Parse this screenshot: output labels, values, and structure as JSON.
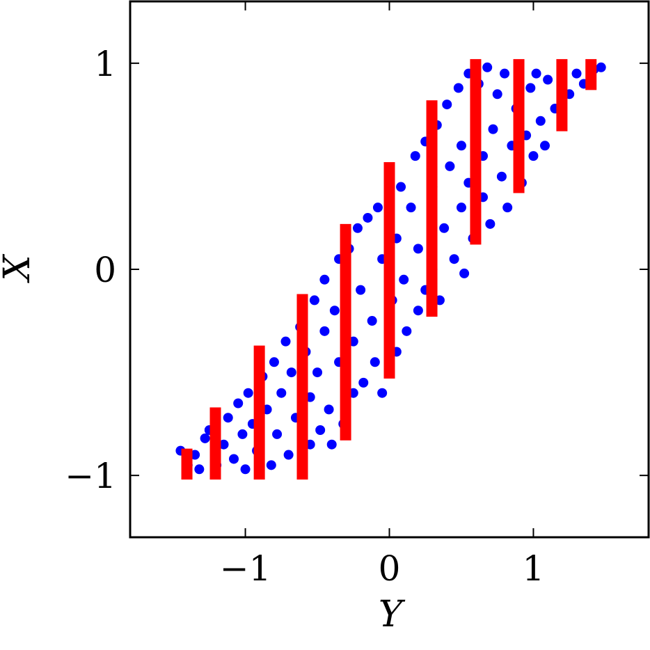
{
  "chart_data": {
    "type": "scatter",
    "x_label": "Y",
    "y_label": "X",
    "xlim": [
      -1.8,
      1.8
    ],
    "ylim": [
      -1.3,
      1.3
    ],
    "xticks": [
      {
        "value": -1,
        "label": "−1"
      },
      0,
      1
    ],
    "yticks": [
      {
        "value": -1,
        "label": "−1"
      },
      0,
      1
    ],
    "points": {
      "color": "#0000ff",
      "x": [
        -1.45,
        -1.4,
        -1.35,
        -1.32,
        -1.28,
        -1.25,
        -1.2,
        -1.15,
        -1.12,
        -1.08,
        -1.05,
        -1.02,
        -1.0,
        -0.98,
        -0.95,
        -0.92,
        -0.88,
        -0.85,
        -0.82,
        -0.8,
        -0.78,
        -0.75,
        -0.72,
        -0.7,
        -0.68,
        -0.65,
        -0.62,
        -0.6,
        -0.58,
        -0.55,
        -0.55,
        -0.52,
        -0.5,
        -0.48,
        -0.45,
        -0.45,
        -0.42,
        -0.4,
        -0.38,
        -0.35,
        -0.35,
        -0.32,
        -0.28,
        -0.25,
        -0.25,
        -0.22,
        -0.2,
        -0.18,
        -0.15,
        -0.12,
        -0.1,
        -0.08,
        -0.05,
        -0.05,
        0.0,
        0.02,
        0.05,
        0.05,
        0.08,
        0.1,
        0.12,
        0.15,
        0.18,
        0.2,
        0.2,
        0.25,
        0.25,
        0.3,
        0.3,
        0.33,
        0.35,
        0.38,
        0.4,
        0.42,
        0.45,
        0.48,
        0.5,
        0.5,
        0.52,
        0.55,
        0.55,
        0.58,
        0.6,
        0.62,
        0.65,
        0.65,
        0.68,
        0.7,
        0.72,
        0.75,
        0.78,
        0.8,
        0.82,
        0.85,
        0.88,
        0.9,
        0.92,
        0.95,
        0.98,
        1.0,
        1.02,
        1.05,
        1.08,
        1.1,
        1.15,
        1.2,
        1.25,
        1.3,
        1.35,
        1.42,
        1.47
      ],
      "y": [
        -0.88,
        -0.95,
        -0.9,
        -0.97,
        -0.82,
        -0.78,
        -0.95,
        -0.85,
        -0.72,
        -0.92,
        -0.65,
        -0.8,
        -0.97,
        -0.6,
        -0.75,
        -0.88,
        -0.52,
        -0.68,
        -0.95,
        -0.45,
        -0.8,
        -0.6,
        -0.35,
        -0.9,
        -0.5,
        -0.72,
        -0.28,
        -0.98,
        -0.4,
        -0.85,
        -0.62,
        -0.15,
        -0.5,
        -0.78,
        -0.05,
        -0.3,
        -0.68,
        -0.85,
        -0.2,
        0.05,
        -0.45,
        -0.75,
        0.1,
        -0.35,
        -0.6,
        0.2,
        -0.1,
        -0.55,
        0.25,
        -0.25,
        -0.45,
        0.3,
        0.05,
        -0.6,
        0.35,
        -0.15,
        0.15,
        -0.4,
        0.4,
        -0.05,
        -0.3,
        0.3,
        0.55,
        -0.2,
        0.1,
        0.62,
        -0.1,
        0.4,
        0.0,
        0.7,
        -0.15,
        0.2,
        0.8,
        0.5,
        0.05,
        0.88,
        0.3,
        0.6,
        -0.02,
        0.95,
        0.42,
        0.15,
        0.75,
        0.9,
        0.35,
        0.55,
        0.98,
        0.22,
        0.68,
        0.85,
        0.45,
        0.95,
        0.3,
        0.6,
        0.78,
        0.98,
        0.42,
        0.65,
        0.88,
        0.55,
        0.95,
        0.72,
        0.6,
        0.92,
        0.78,
        0.97,
        0.85,
        0.95,
        0.9,
        0.97,
        0.98
      ]
    },
    "ranges": {
      "color": "#ff0000",
      "x": [
        -1.406,
        -1.208,
        -0.903,
        -0.604,
        -0.304,
        0.0,
        0.295,
        0.599,
        0.899,
        1.198,
        1.4
      ],
      "low": [
        -1.02,
        -1.02,
        -1.02,
        -1.02,
        -0.83,
        -0.53,
        -0.23,
        0.12,
        0.37,
        0.67,
        0.87
      ],
      "high": [
        -0.87,
        -0.67,
        -0.37,
        -0.12,
        0.22,
        0.52,
        0.82,
        1.02,
        1.02,
        1.02,
        1.02
      ]
    }
  }
}
